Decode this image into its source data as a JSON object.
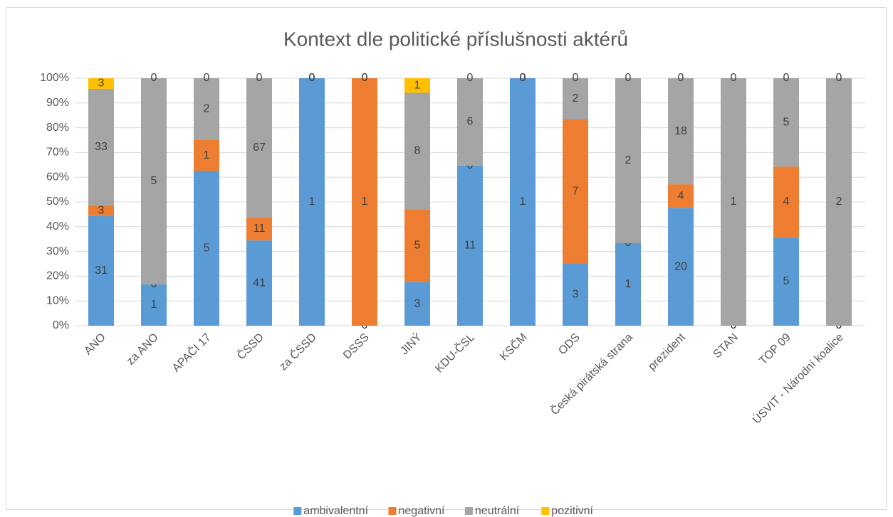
{
  "chart_data": {
    "type": "bar",
    "stacking": "percent",
    "title": "Kontext dle politické příslušnosti aktérů",
    "categories": [
      "ANO",
      "za ANO",
      "APAČI 17",
      "ČSSD",
      "za ČSSD",
      "DSSS",
      "JINÝ",
      "KDU-ČSL",
      "KSČM",
      "ODS",
      "Česká pirátská strana",
      "prezident",
      "STAN",
      "TOP 09",
      "ÚSVIT - Národní koalice"
    ],
    "series": [
      {
        "name": "ambivalentní",
        "color": "#5b9bd5",
        "values": [
          31,
          1,
          5,
          41,
          1,
          0,
          3,
          11,
          1,
          3,
          1,
          20,
          0,
          5,
          0
        ]
      },
      {
        "name": "negativní",
        "color": "#ed7d31",
        "values": [
          3,
          0,
          1,
          11,
          0,
          1,
          5,
          0,
          0,
          7,
          0,
          4,
          0,
          4,
          0
        ]
      },
      {
        "name": "neutrální",
        "color": "#a5a5a5",
        "values": [
          33,
          5,
          2,
          67,
          0,
          0,
          8,
          6,
          0,
          2,
          2,
          18,
          1,
          5,
          2
        ]
      },
      {
        "name": "pozitivní",
        "color": "#ffc000",
        "values": [
          3,
          0,
          0,
          0,
          0,
          0,
          1,
          0,
          0,
          0,
          0,
          0,
          0,
          0,
          0
        ]
      }
    ],
    "ylim": [
      0,
      100
    ],
    "yticks": [
      {
        "value": 0,
        "label": "0%"
      },
      {
        "value": 10,
        "label": "10%"
      },
      {
        "value": 20,
        "label": "20%"
      },
      {
        "value": 30,
        "label": "30%"
      },
      {
        "value": 40,
        "label": "40%"
      },
      {
        "value": 50,
        "label": "50%"
      },
      {
        "value": 60,
        "label": "60%"
      },
      {
        "value": 70,
        "label": "70%"
      },
      {
        "value": 80,
        "label": "80%"
      },
      {
        "value": 90,
        "label": "90%"
      },
      {
        "value": 100,
        "label": "100%"
      }
    ],
    "grid": true,
    "legend": "bottom"
  }
}
